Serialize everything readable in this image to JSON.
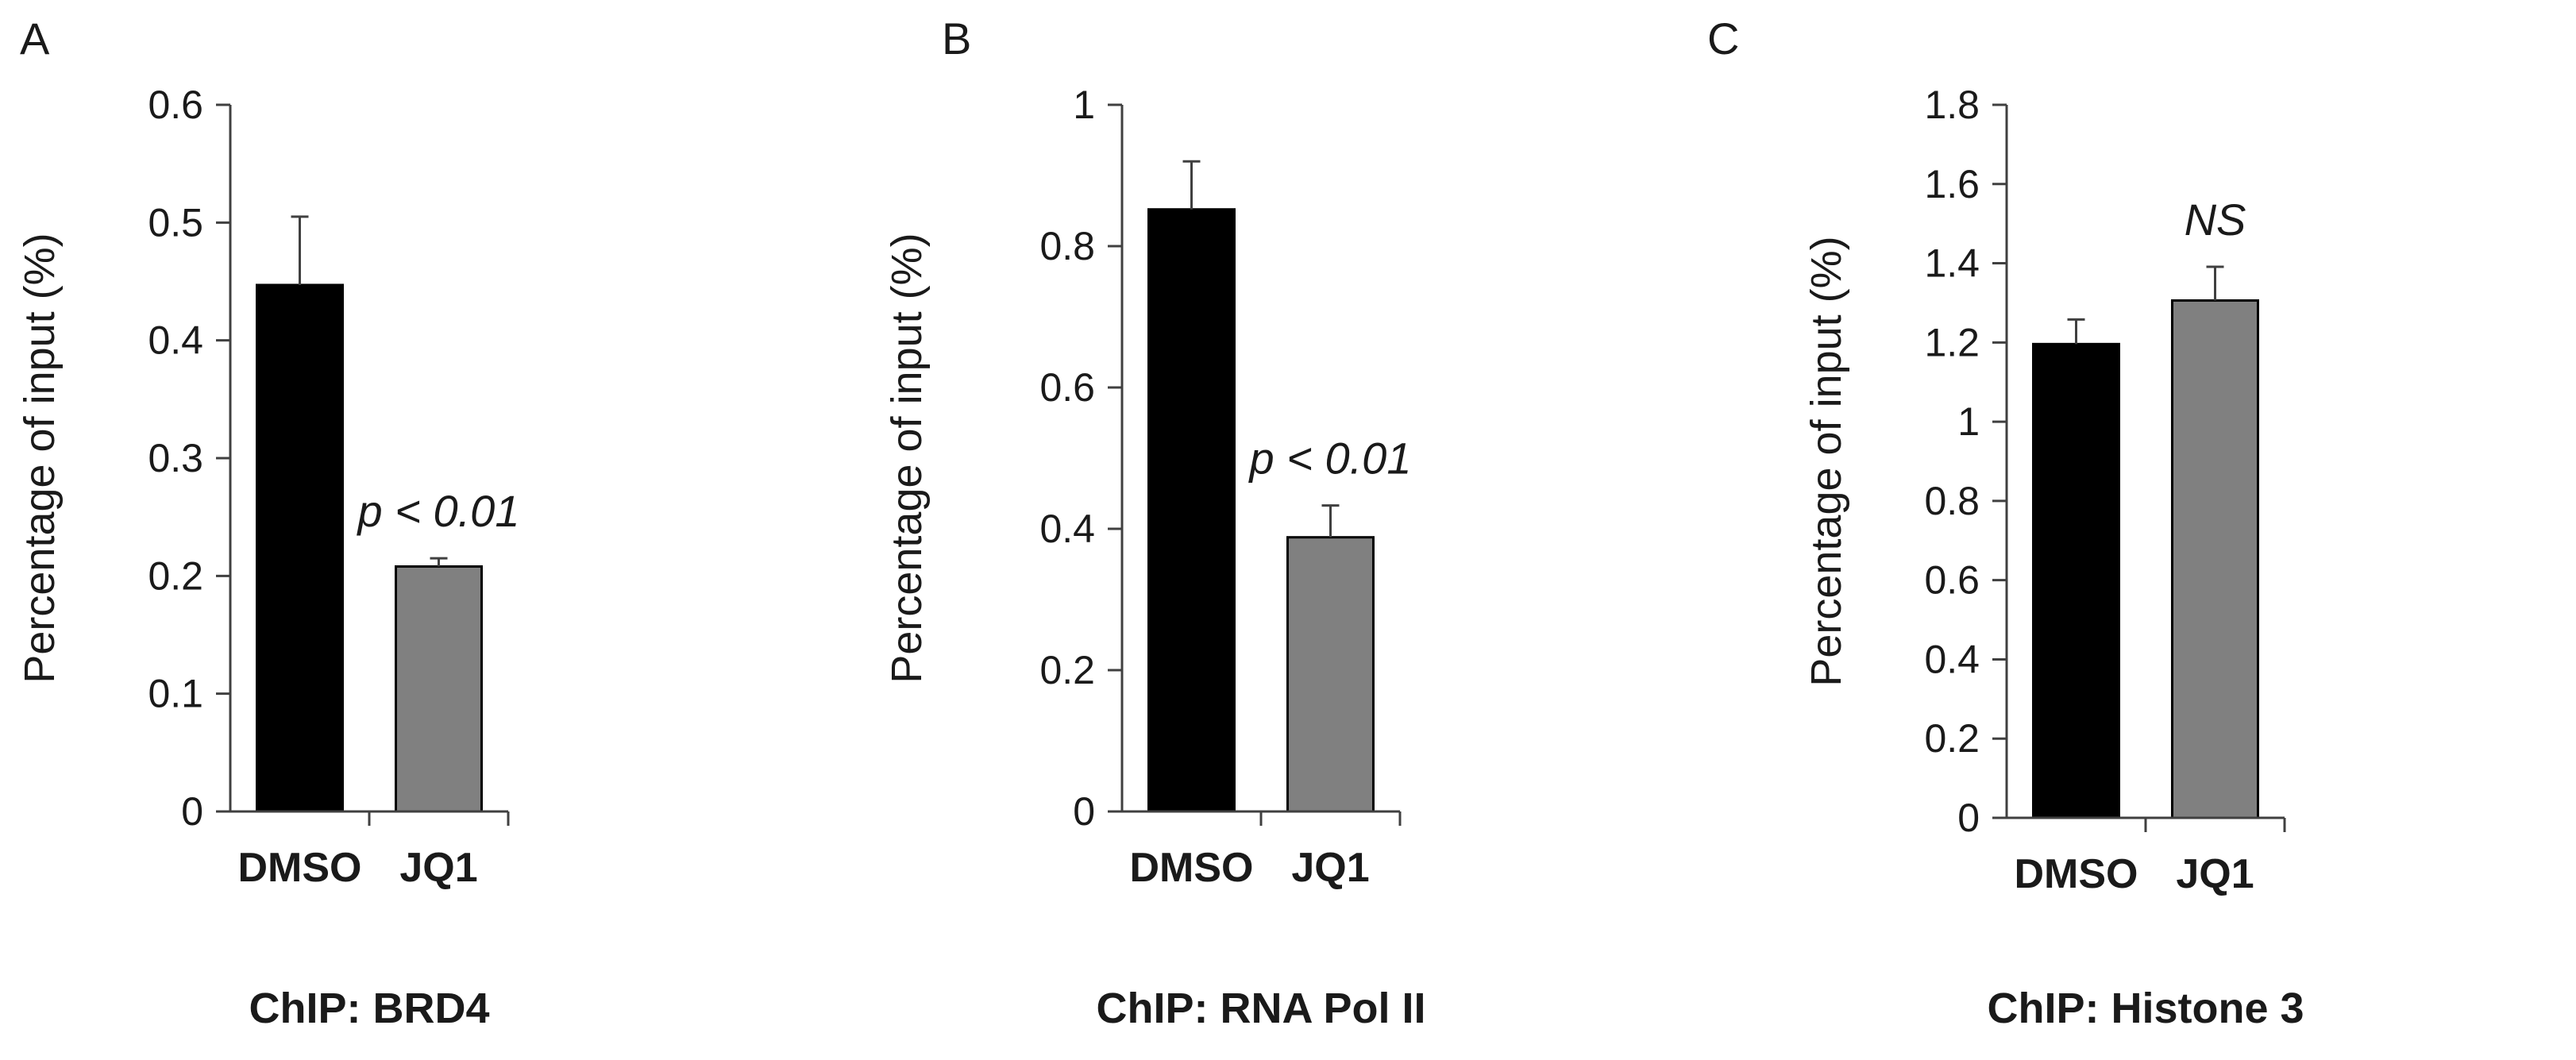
{
  "chart_data": [
    {
      "panel_label": "A",
      "type": "bar",
      "categories": [
        "DMSO",
        "JQ1"
      ],
      "values": [
        0.447,
        0.208
      ],
      "errors": [
        0.058,
        0.007
      ],
      "colors": [
        "#000000",
        "#808080"
      ],
      "ylabel": "Percentage of input (%)",
      "xlabel": "ChIP: BRD4",
      "ylim": [
        0,
        0.6
      ],
      "yticks": [
        0,
        0.1,
        0.2,
        0.3,
        0.4,
        0.5,
        0.6
      ],
      "ytick_labels": [
        "0",
        "0.1",
        "0.2",
        "0.3",
        "0.4",
        "0.5",
        "0.6"
      ],
      "annotation": {
        "text": "p < 0.01",
        "category_index": 1
      },
      "grid": false
    },
    {
      "panel_label": "B",
      "type": "bar",
      "categories": [
        "DMSO",
        "JQ1"
      ],
      "values": [
        0.852,
        0.388
      ],
      "errors": [
        0.068,
        0.045
      ],
      "colors": [
        "#000000",
        "#808080"
      ],
      "ylabel": "Percentage of input (%)",
      "xlabel": "ChIP: RNA Pol II",
      "ylim": [
        0,
        1
      ],
      "yticks": [
        0,
        0.2,
        0.4,
        0.6,
        0.8,
        1
      ],
      "ytick_labels": [
        "0",
        "0.2",
        "0.4",
        "0.6",
        "0.8",
        "1"
      ],
      "annotation": {
        "text": "p < 0.01",
        "category_index": 1
      },
      "grid": false
    },
    {
      "panel_label": "C",
      "type": "bar",
      "categories": [
        "DMSO",
        "JQ1"
      ],
      "values": [
        1.196,
        1.306
      ],
      "errors": [
        0.062,
        0.085
      ],
      "colors": [
        "#000000",
        "#808080"
      ],
      "ylabel": "Percentage of input (%)",
      "xlabel": "ChIP: Histone 3",
      "ylim": [
        0,
        1.8
      ],
      "yticks": [
        0,
        0.2,
        0.4,
        0.6,
        0.8,
        1,
        1.2,
        1.4,
        1.6,
        1.8
      ],
      "ytick_labels": [
        "0",
        "0.2",
        "0.4",
        "0.6",
        "0.8",
        "1",
        "1.2",
        "1.4",
        "1.6",
        "1.8"
      ],
      "annotation": {
        "text": "NS",
        "category_index": 1
      },
      "grid": false
    }
  ]
}
